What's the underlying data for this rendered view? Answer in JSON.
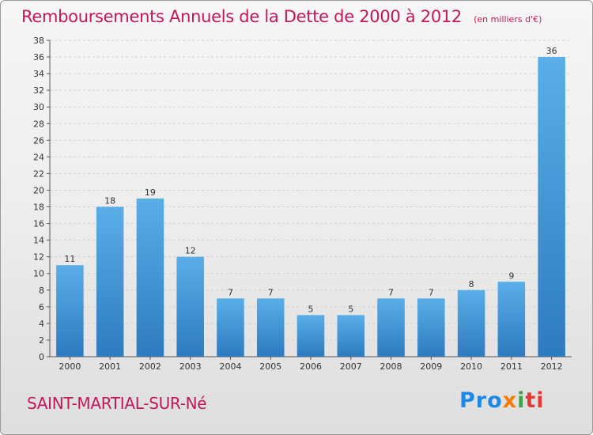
{
  "page": {
    "title": "Remboursements Annuels de la Dette de 2000 à 2012",
    "unit": "(en milliers d'€)",
    "commune": "SAINT-MARTIAL-SUR-Né",
    "logo": "Proxiti"
  },
  "colors": {
    "title": "#c2185b",
    "bar_light": "#5aaee8",
    "bar_dark": "#2d7bbf",
    "logo_blue": "#1e88e5",
    "logo_orange": "#f57c00",
    "logo_green": "#43a047",
    "logo_red": "#e53935"
  },
  "chart_data": {
    "type": "bar",
    "title": "Remboursements Annuels de la Dette de 2000 à 2012",
    "subtitle": "(en milliers d'€)",
    "xlabel": "",
    "ylabel": "",
    "categories": [
      "2000",
      "2001",
      "2002",
      "2003",
      "2004",
      "2005",
      "2006",
      "2007",
      "2008",
      "2009",
      "2010",
      "2011",
      "2012"
    ],
    "values": [
      11,
      18,
      19,
      12,
      7,
      7,
      5,
      5,
      7,
      7,
      8,
      9,
      36
    ],
    "ylim": [
      0,
      38
    ],
    "yticks": [
      0,
      2,
      4,
      6,
      8,
      10,
      12,
      14,
      16,
      18,
      20,
      22,
      24,
      26,
      28,
      30,
      32,
      34,
      36,
      38
    ],
    "grid": true,
    "data_labels": true
  }
}
